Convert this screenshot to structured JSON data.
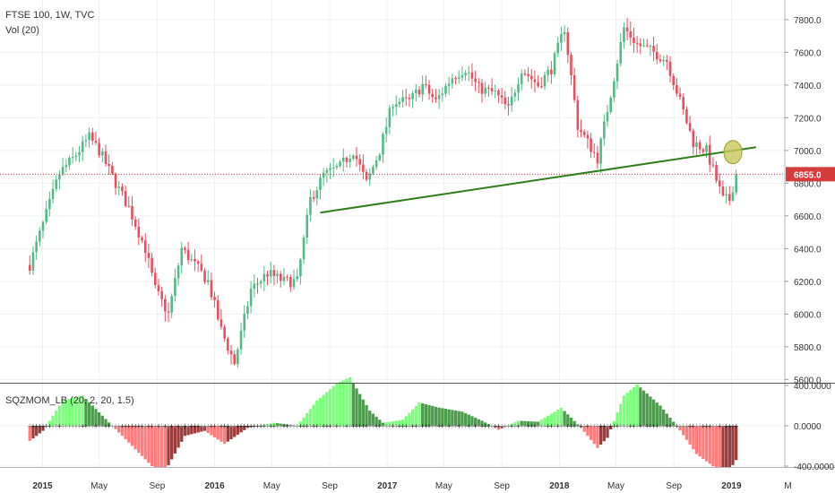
{
  "header": {
    "symbol_line": "FTSE 100, 1W, TVC",
    "volume_line": "Vol (20)",
    "indicator_line": "SQZMOM_LB (20, 2, 20, 1.5)"
  },
  "colors": {
    "up": "#53b987",
    "down": "#eb4d5c",
    "trendline": "#2f7d1a",
    "marker_fill": "#c8c85a",
    "price_line": "#d63c3c",
    "sqz_light_green": "#66ff66",
    "sqz_dark_green": "#2e8b2e",
    "sqz_light_red": "#ff6666",
    "sqz_dark_red": "#8b1a1a",
    "grid": "#eef0f3"
  },
  "chart_data": [
    {
      "type": "candlestick",
      "title": "FTSE 100, 1W, TVC",
      "x_tick_labels": [
        "2015",
        "May",
        "Sep",
        "2016",
        "May",
        "Sep",
        "2017",
        "May",
        "Sep",
        "2018",
        "May",
        "Sep",
        "2019",
        "M"
      ],
      "y_tick_labels": [
        "5600.0",
        "5800.0",
        "6000.0",
        "6200.0",
        "6400.0",
        "6600.0",
        "6800.0",
        "7000.0",
        "7200.0",
        "7400.0",
        "7600.0",
        "7800.0"
      ],
      "ylim": [
        5580,
        7920
      ],
      "last_price": "6855.0",
      "grid": true,
      "weekly_close_anchors": [
        {
          "date": "2014-12-05",
          "close": 6300
        },
        {
          "date": "2015-01-02",
          "close": 6550
        },
        {
          "date": "2015-02-06",
          "close": 6860
        },
        {
          "date": "2015-03-06",
          "close": 6950
        },
        {
          "date": "2015-04-10",
          "close": 7080
        },
        {
          "date": "2015-05-01",
          "close": 7000
        },
        {
          "date": "2015-06-05",
          "close": 6800
        },
        {
          "date": "2015-07-03",
          "close": 6650
        },
        {
          "date": "2015-08-07",
          "close": 6400
        },
        {
          "date": "2015-08-28",
          "close": 6150
        },
        {
          "date": "2015-09-25",
          "close": 6000
        },
        {
          "date": "2015-10-23",
          "close": 6400
        },
        {
          "date": "2015-11-20",
          "close": 6300
        },
        {
          "date": "2015-12-18",
          "close": 6200
        },
        {
          "date": "2016-01-15",
          "close": 5900
        },
        {
          "date": "2016-02-12",
          "close": 5700
        },
        {
          "date": "2016-03-18",
          "close": 6150
        },
        {
          "date": "2016-04-22",
          "close": 6250
        },
        {
          "date": "2016-05-27",
          "close": 6200
        },
        {
          "date": "2016-06-24",
          "close": 6200
        },
        {
          "date": "2016-07-22",
          "close": 6700
        },
        {
          "date": "2016-08-19",
          "close": 6850
        },
        {
          "date": "2016-09-23",
          "close": 6900
        },
        {
          "date": "2016-10-21",
          "close": 7000
        },
        {
          "date": "2016-11-18",
          "close": 6800
        },
        {
          "date": "2016-12-16",
          "close": 7000
        },
        {
          "date": "2017-01-13",
          "close": 7300
        },
        {
          "date": "2017-02-17",
          "close": 7300
        },
        {
          "date": "2017-03-17",
          "close": 7400
        },
        {
          "date": "2017-04-14",
          "close": 7300
        },
        {
          "date": "2017-05-19",
          "close": 7450
        },
        {
          "date": "2017-06-16",
          "close": 7500
        },
        {
          "date": "2017-07-14",
          "close": 7380
        },
        {
          "date": "2017-08-18",
          "close": 7350
        },
        {
          "date": "2017-09-15",
          "close": 7250
        },
        {
          "date": "2017-10-13",
          "close": 7500
        },
        {
          "date": "2017-11-17",
          "close": 7400
        },
        {
          "date": "2017-12-15",
          "close": 7500
        },
        {
          "date": "2018-01-12",
          "close": 7750
        },
        {
          "date": "2018-02-09",
          "close": 7150
        },
        {
          "date": "2018-03-23",
          "close": 6950
        },
        {
          "date": "2018-04-20",
          "close": 7350
        },
        {
          "date": "2018-05-18",
          "close": 7750
        },
        {
          "date": "2018-06-15",
          "close": 7650
        },
        {
          "date": "2018-07-20",
          "close": 7600
        },
        {
          "date": "2018-08-17",
          "close": 7550
        },
        {
          "date": "2018-09-14",
          "close": 7300
        },
        {
          "date": "2018-10-12",
          "close": 7050
        },
        {
          "date": "2018-11-09",
          "close": 7000
        },
        {
          "date": "2018-12-14",
          "close": 6700
        },
        {
          "date": "2018-12-28",
          "close": 6700
        },
        {
          "date": "2019-01-11",
          "close": 6855
        }
      ],
      "annotations": {
        "trendline": {
          "from": {
            "date": "2016-08-12",
            "value": 6620
          },
          "to": {
            "date": "2019-02-22",
            "value": 7020
          }
        },
        "circle_marker": {
          "date": "2019-01-04",
          "value": 6990
        }
      }
    },
    {
      "type": "bar",
      "title": "SQZMOM_LB (20, 2, 20, 1.5)",
      "y_tick_labels": [
        "400.0000",
        "0.0000",
        "-400.0000"
      ],
      "ylim": [
        -480,
        510
      ],
      "momentum_anchors": [
        {
          "date": "2014-12-05",
          "value": -150
        },
        {
          "date": "2015-01-02",
          "value": -50
        },
        {
          "date": "2015-02-13",
          "value": 250
        },
        {
          "date": "2015-03-27",
          "value": 300
        },
        {
          "date": "2015-05-08",
          "value": 100
        },
        {
          "date": "2015-06-19",
          "value": -100
        },
        {
          "date": "2015-08-21",
          "value": -400
        },
        {
          "date": "2015-09-18",
          "value": -450
        },
        {
          "date": "2015-10-30",
          "value": -100
        },
        {
          "date": "2015-12-11",
          "value": -50
        },
        {
          "date": "2016-01-22",
          "value": -180
        },
        {
          "date": "2016-03-11",
          "value": -20
        },
        {
          "date": "2016-05-06",
          "value": 30
        },
        {
          "date": "2016-06-24",
          "value": 0
        },
        {
          "date": "2016-08-05",
          "value": 250
        },
        {
          "date": "2016-09-16",
          "value": 420
        },
        {
          "date": "2016-10-14",
          "value": 480
        },
        {
          "date": "2016-11-25",
          "value": 150
        },
        {
          "date": "2016-12-23",
          "value": 30
        },
        {
          "date": "2017-02-03",
          "value": 60
        },
        {
          "date": "2017-03-10",
          "value": 230
        },
        {
          "date": "2017-04-21",
          "value": 180
        },
        {
          "date": "2017-06-09",
          "value": 140
        },
        {
          "date": "2017-07-21",
          "value": 50
        },
        {
          "date": "2017-08-25",
          "value": -40
        },
        {
          "date": "2017-10-06",
          "value": 50
        },
        {
          "date": "2017-11-17",
          "value": 40
        },
        {
          "date": "2018-01-05",
          "value": 180
        },
        {
          "date": "2018-02-16",
          "value": -20
        },
        {
          "date": "2018-03-23",
          "value": -220
        },
        {
          "date": "2018-04-13",
          "value": -120
        },
        {
          "date": "2018-05-18",
          "value": 300
        },
        {
          "date": "2018-06-15",
          "value": 410
        },
        {
          "date": "2018-08-03",
          "value": 200
        },
        {
          "date": "2018-09-07",
          "value": 0
        },
        {
          "date": "2018-10-19",
          "value": -280
        },
        {
          "date": "2018-12-07",
          "value": -450
        },
        {
          "date": "2018-12-28",
          "value": -440
        },
        {
          "date": "2019-01-11",
          "value": -340
        }
      ]
    }
  ]
}
